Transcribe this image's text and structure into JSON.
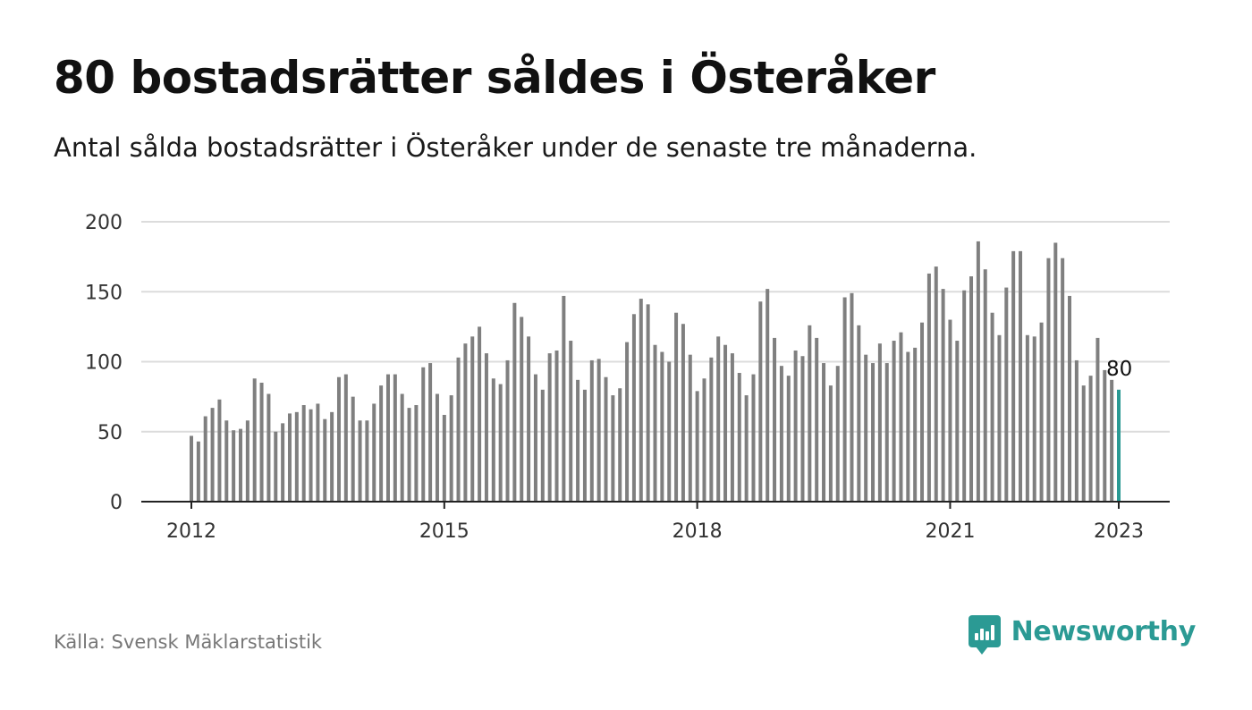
{
  "header": {
    "title": "80 bostadsrätter såldes i Österåker",
    "subtitle": "Antal sålda bostadsrätter i Österåker under de senaste tre månaderna."
  },
  "footer": {
    "source": "Källa: Svensk Mäklarstatistik",
    "brand": "Newsworthy",
    "brand_icon": "bar-chart-speech-bubble-icon"
  },
  "colors": {
    "bar": "#7f7f7f",
    "highlight": "#2b9a94",
    "grid": "#dcdcdc",
    "axis": "#222222",
    "brand": "#2b9a94"
  },
  "chart_data": {
    "type": "bar",
    "title": "80 bostadsrätter såldes i Österåker",
    "subtitle": "Antal sålda bostadsrätter i Österåker under de senaste tre månaderna.",
    "xlabel": "",
    "ylabel": "",
    "ylim": [
      0,
      200
    ],
    "yticks": [
      0,
      50,
      100,
      150,
      200
    ],
    "xticks": [
      "2012",
      "2015",
      "2018",
      "2021",
      "2023"
    ],
    "x_start": "2012-01",
    "x_end": "2023-01",
    "grid": true,
    "end_label": "80",
    "series": [
      {
        "values": [
          47,
          43,
          61,
          67,
          73,
          58,
          51,
          52,
          58,
          88,
          85,
          77,
          50,
          56,
          63,
          64,
          69,
          66,
          70,
          59,
          64,
          89,
          91,
          75,
          58,
          58,
          70,
          83,
          91,
          91,
          77,
          67,
          69,
          96,
          99,
          77,
          62,
          76,
          103,
          113,
          118,
          125,
          106,
          88,
          84,
          101,
          142,
          132,
          118,
          91,
          80,
          106,
          108,
          147,
          115,
          87,
          80,
          101,
          102,
          89,
          76,
          81,
          114,
          134,
          145,
          141,
          112,
          107,
          100,
          135,
          127,
          105,
          79,
          88,
          103,
          118,
          112,
          106,
          92,
          76,
          91,
          143,
          152,
          117,
          97,
          90,
          108,
          104,
          126,
          117,
          99,
          83,
          97,
          146,
          149,
          126,
          105,
          99,
          113,
          99,
          115,
          121,
          107,
          110,
          128,
          163,
          168,
          152,
          130,
          115,
          151,
          161,
          186,
          166,
          135,
          119,
          153,
          179,
          179,
          119,
          118,
          128,
          174,
          185,
          174,
          147,
          101,
          83,
          90,
          117,
          94,
          87,
          80
        ]
      }
    ]
  }
}
